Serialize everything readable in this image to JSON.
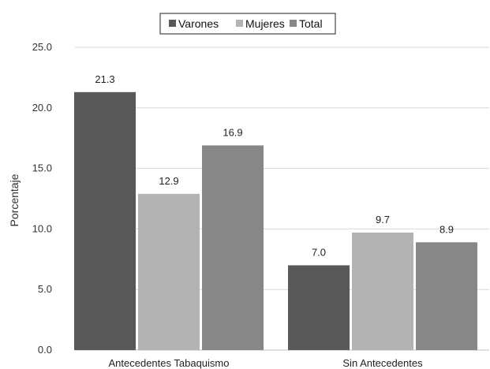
{
  "chart_data": {
    "type": "bar",
    "categories": [
      "Antecedentes Tabaquismo",
      "Sin Antecedentes"
    ],
    "series": [
      {
        "name": "Varones",
        "values": [
          21.3,
          7.0
        ],
        "color": "#595959"
      },
      {
        "name": "Mujeres",
        "values": [
          12.9,
          9.7
        ],
        "color": "#b3b3b3"
      },
      {
        "name": "Total",
        "values": [
          16.9,
          8.9
        ],
        "color": "#878787"
      }
    ],
    "data_labels": [
      [
        "21.3",
        "12.9",
        "16.9"
      ],
      [
        "7.0",
        "9.7",
        "8.9"
      ]
    ],
    "ylabel": "Porcentaje",
    "ylim": [
      0,
      25
    ],
    "yticks": [
      "0.0",
      "5.0",
      "10.0",
      "15.0",
      "20.0",
      "25.0"
    ],
    "grid": true,
    "legend_position": "top-center"
  }
}
